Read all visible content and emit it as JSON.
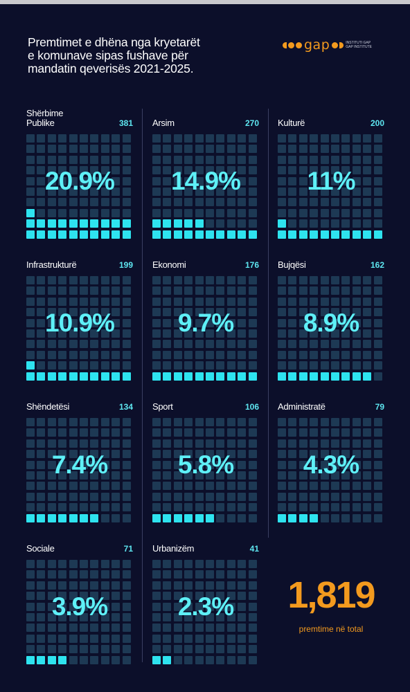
{
  "header": {
    "title_lines": [
      "Premtimet e dhëna nga kryetarët",
      "e komunave sipas fushave për",
      "mandatin qeverisës 2021-2025."
    ],
    "logo_word": "gap",
    "logo_institute_lines": [
      "INSTITUTI GAP",
      "GAP INSTITUTE"
    ]
  },
  "colors": {
    "background": "#0c0f2a",
    "cell_off": "#1d3954",
    "cell_on": "#2ee3ef",
    "percent_text": "#5ef0f7",
    "count_text": "#5ee6f0",
    "accent_orange": "#f39a1e"
  },
  "chart_data": {
    "type": "waffle",
    "grid": "10x10",
    "unit": "percent of total promises",
    "series": [
      {
        "label": "Shërbime\nPublike",
        "count": 381,
        "percent": 20.9,
        "percent_label": "20.9%"
      },
      {
        "label": "Arsim",
        "count": 270,
        "percent": 14.9,
        "percent_label": "14.9%"
      },
      {
        "label": "Kulturë",
        "count": 200,
        "percent": 11,
        "percent_label": "11%"
      },
      {
        "label": "Infrastrukturë",
        "count": 199,
        "percent": 10.9,
        "percent_label": "10.9%"
      },
      {
        "label": "Ekonomi",
        "count": 176,
        "percent": 9.7,
        "percent_label": "9.7%"
      },
      {
        "label": "Bujqësi",
        "count": 162,
        "percent": 8.9,
        "percent_label": "8.9%"
      },
      {
        "label": "Shëndetësi",
        "count": 134,
        "percent": 7.4,
        "percent_label": "7.4%"
      },
      {
        "label": "Sport",
        "count": 106,
        "percent": 5.8,
        "percent_label": "5.8%"
      },
      {
        "label": "Administratë",
        "count": 79,
        "percent": 4.3,
        "percent_label": "4.3%"
      },
      {
        "label": "Sociale",
        "count": 71,
        "percent": 3.9,
        "percent_label": "3.9%"
      },
      {
        "label": "Urbanizëm",
        "count": 41,
        "percent": 2.3,
        "percent_label": "2.3%"
      }
    ],
    "total": {
      "value": "1,819",
      "label": "premtime në total"
    }
  }
}
